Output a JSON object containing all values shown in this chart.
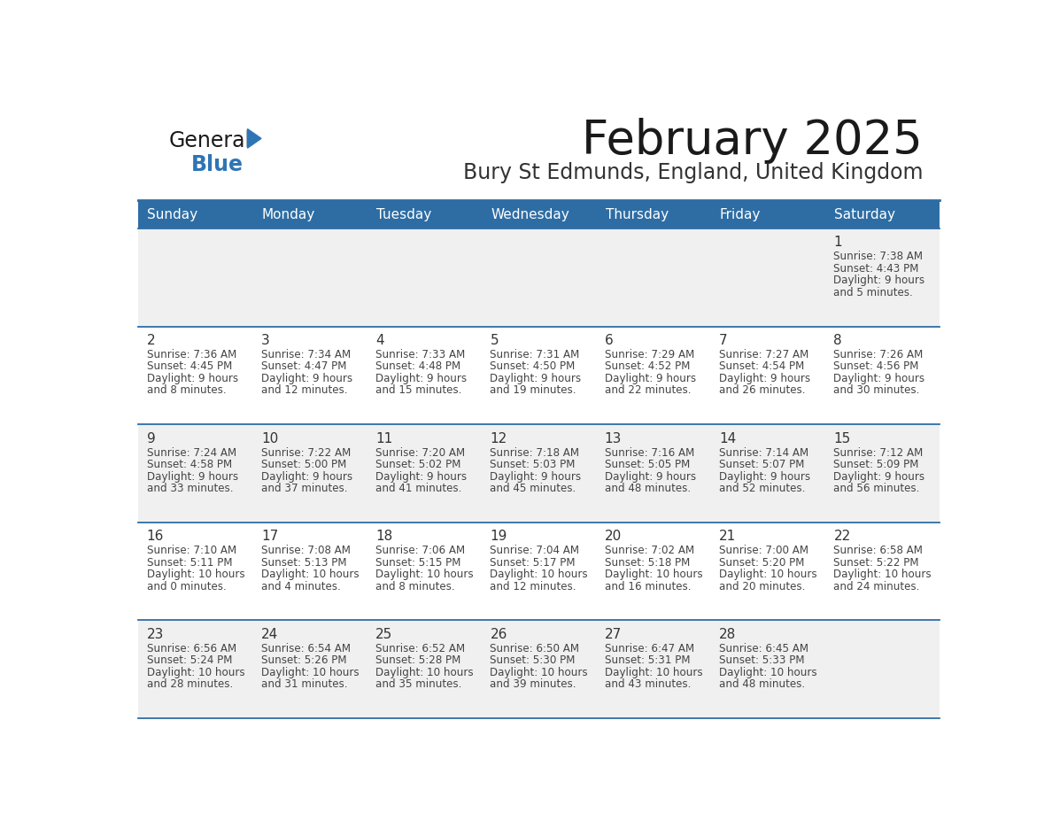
{
  "title": "February 2025",
  "subtitle": "Bury St Edmunds, England, United Kingdom",
  "days_of_week": [
    "Sunday",
    "Monday",
    "Tuesday",
    "Wednesday",
    "Thursday",
    "Friday",
    "Saturday"
  ],
  "header_bg": "#2E6DA4",
  "header_text_color": "#FFFFFF",
  "cell_bg_odd": "#F0F0F0",
  "cell_bg_even": "#FFFFFF",
  "cell_text_color": "#444444",
  "day_num_color": "#333333",
  "border_color": "#2E6DA4",
  "title_color": "#1a1a1a",
  "subtitle_color": "#333333",
  "logo_general_color": "#1a1a1a",
  "logo_blue_color": "#2E75B6",
  "calendar_data": [
    [
      null,
      null,
      null,
      null,
      null,
      null,
      {
        "day": 1,
        "sunrise": "7:38 AM",
        "sunset": "4:43 PM",
        "daylight": "9 hours",
        "daylight2": "and 5 minutes."
      }
    ],
    [
      {
        "day": 2,
        "sunrise": "7:36 AM",
        "sunset": "4:45 PM",
        "daylight": "9 hours",
        "daylight2": "and 8 minutes."
      },
      {
        "day": 3,
        "sunrise": "7:34 AM",
        "sunset": "4:47 PM",
        "daylight": "9 hours",
        "daylight2": "and 12 minutes."
      },
      {
        "day": 4,
        "sunrise": "7:33 AM",
        "sunset": "4:48 PM",
        "daylight": "9 hours",
        "daylight2": "and 15 minutes."
      },
      {
        "day": 5,
        "sunrise": "7:31 AM",
        "sunset": "4:50 PM",
        "daylight": "9 hours",
        "daylight2": "and 19 minutes."
      },
      {
        "day": 6,
        "sunrise": "7:29 AM",
        "sunset": "4:52 PM",
        "daylight": "9 hours",
        "daylight2": "and 22 minutes."
      },
      {
        "day": 7,
        "sunrise": "7:27 AM",
        "sunset": "4:54 PM",
        "daylight": "9 hours",
        "daylight2": "and 26 minutes."
      },
      {
        "day": 8,
        "sunrise": "7:26 AM",
        "sunset": "4:56 PM",
        "daylight": "9 hours",
        "daylight2": "and 30 minutes."
      }
    ],
    [
      {
        "day": 9,
        "sunrise": "7:24 AM",
        "sunset": "4:58 PM",
        "daylight": "9 hours",
        "daylight2": "and 33 minutes."
      },
      {
        "day": 10,
        "sunrise": "7:22 AM",
        "sunset": "5:00 PM",
        "daylight": "9 hours",
        "daylight2": "and 37 minutes."
      },
      {
        "day": 11,
        "sunrise": "7:20 AM",
        "sunset": "5:02 PM",
        "daylight": "9 hours",
        "daylight2": "and 41 minutes."
      },
      {
        "day": 12,
        "sunrise": "7:18 AM",
        "sunset": "5:03 PM",
        "daylight": "9 hours",
        "daylight2": "and 45 minutes."
      },
      {
        "day": 13,
        "sunrise": "7:16 AM",
        "sunset": "5:05 PM",
        "daylight": "9 hours",
        "daylight2": "and 48 minutes."
      },
      {
        "day": 14,
        "sunrise": "7:14 AM",
        "sunset": "5:07 PM",
        "daylight": "9 hours",
        "daylight2": "and 52 minutes."
      },
      {
        "day": 15,
        "sunrise": "7:12 AM",
        "sunset": "5:09 PM",
        "daylight": "9 hours",
        "daylight2": "and 56 minutes."
      }
    ],
    [
      {
        "day": 16,
        "sunrise": "7:10 AM",
        "sunset": "5:11 PM",
        "daylight": "10 hours",
        "daylight2": "and 0 minutes."
      },
      {
        "day": 17,
        "sunrise": "7:08 AM",
        "sunset": "5:13 PM",
        "daylight": "10 hours",
        "daylight2": "and 4 minutes."
      },
      {
        "day": 18,
        "sunrise": "7:06 AM",
        "sunset": "5:15 PM",
        "daylight": "10 hours",
        "daylight2": "and 8 minutes."
      },
      {
        "day": 19,
        "sunrise": "7:04 AM",
        "sunset": "5:17 PM",
        "daylight": "10 hours",
        "daylight2": "and 12 minutes."
      },
      {
        "day": 20,
        "sunrise": "7:02 AM",
        "sunset": "5:18 PM",
        "daylight": "10 hours",
        "daylight2": "and 16 minutes."
      },
      {
        "day": 21,
        "sunrise": "7:00 AM",
        "sunset": "5:20 PM",
        "daylight": "10 hours",
        "daylight2": "and 20 minutes."
      },
      {
        "day": 22,
        "sunrise": "6:58 AM",
        "sunset": "5:22 PM",
        "daylight": "10 hours",
        "daylight2": "and 24 minutes."
      }
    ],
    [
      {
        "day": 23,
        "sunrise": "6:56 AM",
        "sunset": "5:24 PM",
        "daylight": "10 hours",
        "daylight2": "and 28 minutes."
      },
      {
        "day": 24,
        "sunrise": "6:54 AM",
        "sunset": "5:26 PM",
        "daylight": "10 hours",
        "daylight2": "and 31 minutes."
      },
      {
        "day": 25,
        "sunrise": "6:52 AM",
        "sunset": "5:28 PM",
        "daylight": "10 hours",
        "daylight2": "and 35 minutes."
      },
      {
        "day": 26,
        "sunrise": "6:50 AM",
        "sunset": "5:30 PM",
        "daylight": "10 hours",
        "daylight2": "and 39 minutes."
      },
      {
        "day": 27,
        "sunrise": "6:47 AM",
        "sunset": "5:31 PM",
        "daylight": "10 hours",
        "daylight2": "and 43 minutes."
      },
      {
        "day": 28,
        "sunrise": "6:45 AM",
        "sunset": "5:33 PM",
        "daylight": "10 hours",
        "daylight2": "and 48 minutes."
      },
      null
    ]
  ]
}
